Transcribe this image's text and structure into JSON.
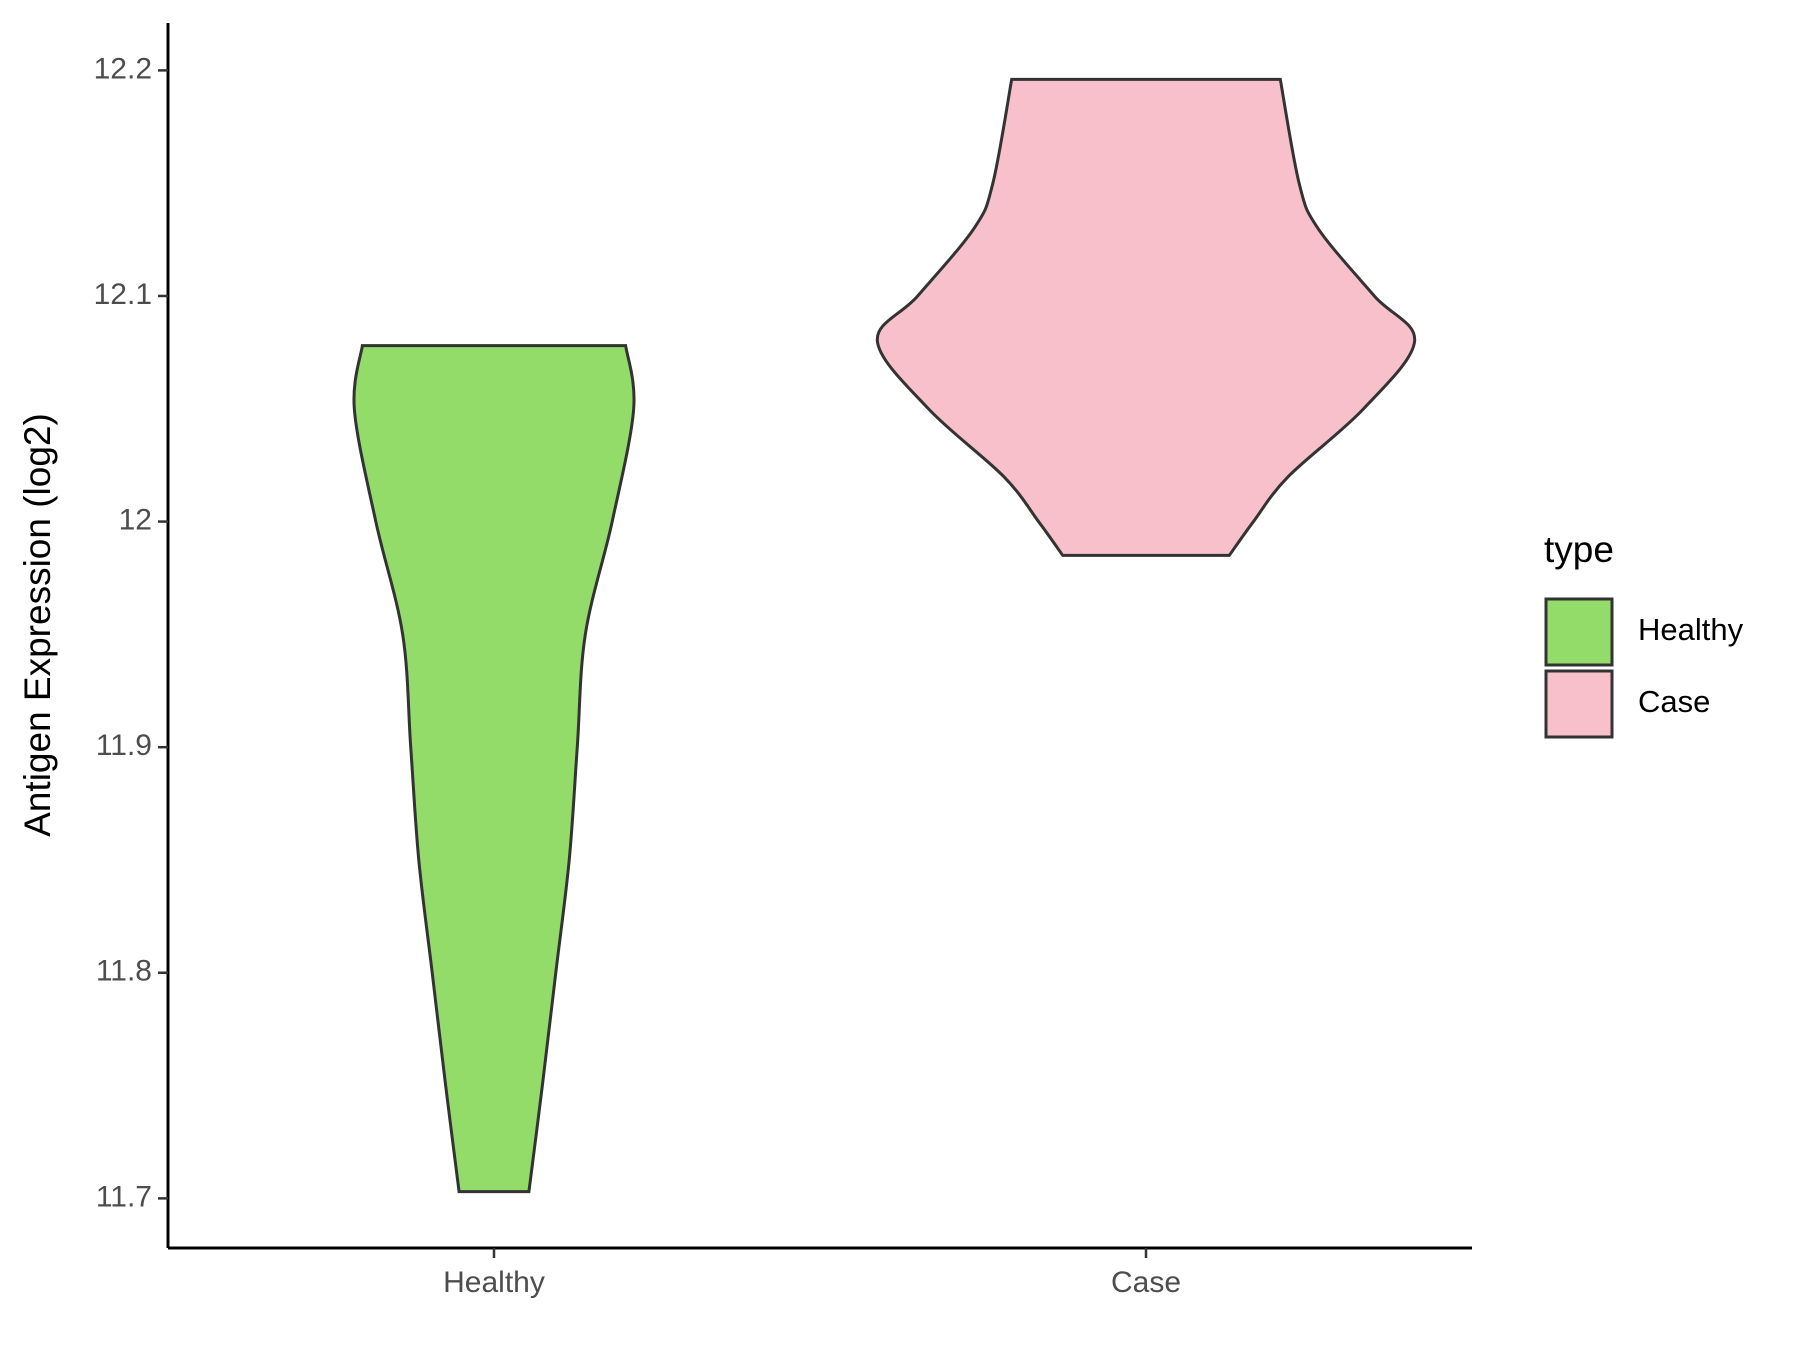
{
  "chart_data": {
    "type": "violin",
    "y_label": "Antigen Expression (log2)",
    "categories": [
      "Healthy",
      "Case"
    ],
    "legend_title": "type",
    "legend": "right",
    "ylim": [
      11.678,
      12.221
    ],
    "yticks": [
      11.7,
      11.8,
      11.9,
      12.0,
      12.1,
      12.2
    ],
    "series": [
      {
        "name": "Healthy",
        "color": "#93dc6a",
        "y": [
          11.703,
          11.75,
          11.8,
          11.85,
          11.9,
          11.95,
          12.0,
          12.05,
          12.078
        ],
        "density": [
          0.13,
          0.18,
          0.23,
          0.28,
          0.31,
          0.34,
          0.44,
          0.52,
          0.49
        ]
      },
      {
        "name": "Case",
        "color": "#f8c0cb",
        "y": [
          11.985,
          12.0,
          12.02,
          12.05,
          12.08,
          12.1,
          12.13,
          12.15,
          12.196
        ],
        "density": [
          0.31,
          0.4,
          0.53,
          0.81,
          1,
          0.85,
          0.64,
          0.57,
          0.5
        ]
      }
    ]
  }
}
